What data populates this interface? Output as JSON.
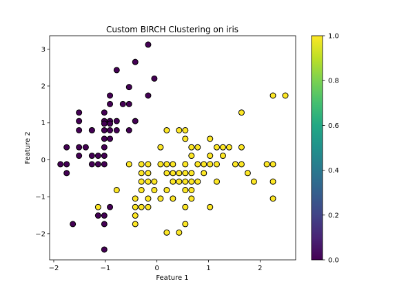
{
  "chart_data": {
    "type": "scatter",
    "title": "Custom BIRCH Clustering on iris",
    "xlabel": "Feature 1",
    "ylabel": "Feature 2",
    "xlim": [
      -2.08,
      2.69
    ],
    "ylim": [
      -2.71,
      3.36
    ],
    "xticks": [
      -2,
      -1,
      0,
      1,
      2
    ],
    "yticks": [
      -2,
      -1,
      0,
      1,
      2,
      3
    ],
    "colorbar": {
      "range": [
        0.0,
        1.0
      ],
      "ticks": [
        "0.0",
        "0.2",
        "0.4",
        "0.6",
        "0.8",
        "1.0"
      ],
      "colormap": "viridis"
    },
    "marker_edge_color": "#000000",
    "series": [
      {
        "cluster": 0,
        "color": "#440154",
        "points": [
          [
            -0.17,
            3.12
          ],
          [
            -0.42,
            2.65
          ],
          [
            -0.78,
            2.43
          ],
          [
            -0.05,
            2.2
          ],
          [
            -0.54,
            1.97
          ],
          [
            -0.91,
            1.74
          ],
          [
            -0.17,
            1.74
          ],
          [
            -0.91,
            1.51
          ],
          [
            -0.66,
            1.51
          ],
          [
            -0.54,
            1.51
          ],
          [
            -1.02,
            1.28
          ],
          [
            -1.51,
            1.28
          ],
          [
            -1.51,
            1.05
          ],
          [
            -1.02,
            1.05
          ],
          [
            -0.91,
            1.05
          ],
          [
            -0.78,
            1.05
          ],
          [
            -1.02,
            0.98
          ],
          [
            -0.91,
            0.98
          ],
          [
            -0.42,
            1.05
          ],
          [
            -1.51,
            0.8
          ],
          [
            -1.26,
            0.8
          ],
          [
            -1.02,
            0.8
          ],
          [
            -0.91,
            0.8
          ],
          [
            -0.78,
            0.8
          ],
          [
            -0.54,
            0.8
          ],
          [
            -1.02,
            0.57
          ],
          [
            -0.91,
            0.57
          ],
          [
            -1.26,
            0.8
          ],
          [
            -1.75,
            0.34
          ],
          [
            -1.51,
            0.34
          ],
          [
            -1.38,
            0.34
          ],
          [
            -1.02,
            0.34
          ],
          [
            -1.26,
            0.11
          ],
          [
            -1.14,
            0.11
          ],
          [
            -1.51,
            0.11
          ],
          [
            -1.02,
            0.11
          ],
          [
            -1.87,
            -0.12
          ],
          [
            -1.75,
            -0.12
          ],
          [
            -1.26,
            -0.12
          ],
          [
            -1.14,
            -0.12
          ],
          [
            -1.02,
            -0.12
          ],
          [
            -1.75,
            -0.36
          ],
          [
            -1.14,
            -1.51
          ],
          [
            -1.02,
            -1.51
          ],
          [
            -0.91,
            -1.28
          ],
          [
            -1.63,
            -1.74
          ],
          [
            -1.02,
            -1.74
          ],
          [
            -1.02,
            -2.43
          ]
        ]
      },
      {
        "cluster": 1,
        "color": "#fde725",
        "points": [
          [
            2.25,
            1.74
          ],
          [
            2.49,
            1.74
          ],
          [
            1.64,
            1.28
          ],
          [
            0.19,
            0.8
          ],
          [
            0.43,
            0.8
          ],
          [
            0.55,
            0.8
          ],
          [
            0.55,
            0.57
          ],
          [
            1.03,
            0.57
          ],
          [
            0.07,
            0.34
          ],
          [
            0.67,
            0.34
          ],
          [
            0.79,
            0.34
          ],
          [
            1.16,
            0.34
          ],
          [
            1.28,
            0.34
          ],
          [
            1.4,
            0.34
          ],
          [
            1.64,
            0.34
          ],
          [
            0.67,
            0.11
          ],
          [
            1.03,
            0.11
          ],
          [
            1.28,
            0.11
          ],
          [
            -0.54,
            -0.12
          ],
          [
            -0.3,
            -0.12
          ],
          [
            -0.17,
            -0.12
          ],
          [
            0.07,
            -0.12
          ],
          [
            0.19,
            -0.12
          ],
          [
            0.31,
            -0.12
          ],
          [
            0.55,
            -0.12
          ],
          [
            0.79,
            -0.12
          ],
          [
            0.91,
            -0.12
          ],
          [
            1.03,
            -0.12
          ],
          [
            1.16,
            -0.12
          ],
          [
            1.52,
            -0.12
          ],
          [
            1.64,
            -0.12
          ],
          [
            2.13,
            -0.12
          ],
          [
            2.25,
            -0.12
          ],
          [
            -0.3,
            -0.36
          ],
          [
            -0.17,
            -0.36
          ],
          [
            0.19,
            -0.36
          ],
          [
            0.31,
            -0.36
          ],
          [
            0.43,
            -0.36
          ],
          [
            0.55,
            -0.36
          ],
          [
            0.67,
            -0.36
          ],
          [
            0.91,
            -0.36
          ],
          [
            1.76,
            -0.36
          ],
          [
            -0.3,
            -0.59
          ],
          [
            -0.17,
            -0.59
          ],
          [
            -0.05,
            -0.59
          ],
          [
            0.31,
            -0.59
          ],
          [
            0.43,
            -0.59
          ],
          [
            0.55,
            -0.59
          ],
          [
            0.67,
            -0.59
          ],
          [
            0.79,
            -0.59
          ],
          [
            1.16,
            -0.59
          ],
          [
            1.88,
            -0.59
          ],
          [
            2.25,
            -0.59
          ],
          [
            -0.78,
            -0.82
          ],
          [
            -0.3,
            -0.82
          ],
          [
            -0.05,
            -0.82
          ],
          [
            0.19,
            -0.82
          ],
          [
            0.55,
            -0.82
          ],
          [
            0.67,
            -0.82
          ],
          [
            -0.42,
            -1.05
          ],
          [
            -0.17,
            -1.05
          ],
          [
            0.07,
            -1.05
          ],
          [
            0.31,
            -1.05
          ],
          [
            0.67,
            -1.05
          ],
          [
            2.25,
            -1.05
          ],
          [
            -1.14,
            -1.28
          ],
          [
            -0.42,
            -1.28
          ],
          [
            -0.3,
            -1.28
          ],
          [
            -0.17,
            -1.28
          ],
          [
            0.55,
            -1.28
          ],
          [
            1.03,
            -1.28
          ],
          [
            -0.42,
            -1.51
          ],
          [
            -0.42,
            -1.74
          ],
          [
            0.55,
            -1.74
          ],
          [
            0.19,
            -1.97
          ],
          [
            0.43,
            -1.97
          ]
        ]
      }
    ]
  }
}
